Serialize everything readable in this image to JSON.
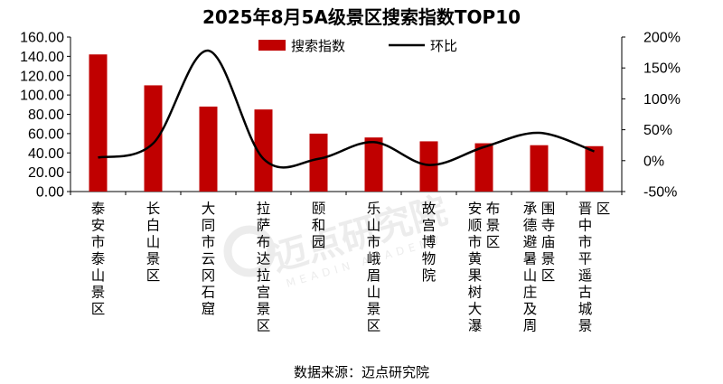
{
  "chart_data": {
    "type": "bar",
    "title": "2025年8月5A级景区搜索指数TOP10",
    "categories": [
      "泰安市泰山景区",
      "长白山景区",
      "大同市云冈石窟",
      "拉萨布达拉宫景区",
      "颐和园",
      "乐山市峨眉山景区",
      "故宫博物院",
      "安顺市黄果树大瀑布景区",
      "承德避暑山庄及周围寺庙景区",
      "晋中市平遥古城景区"
    ],
    "category_lines": [
      [
        "泰安市泰山景区"
      ],
      [
        "长白山景区"
      ],
      [
        "大同市云冈石窟"
      ],
      [
        "拉萨布达拉宫景区"
      ],
      [
        "颐和园"
      ],
      [
        "乐山市峨眉山景区"
      ],
      [
        "故宫博物院"
      ],
      [
        "安顺市黄果树大瀑",
        "布景区"
      ],
      [
        "承德避暑山庄及周",
        "围寺庙景区"
      ],
      [
        "晋中市平遥古城景",
        "区"
      ]
    ],
    "series": [
      {
        "name": "搜索指数",
        "type": "bar",
        "axis": "left",
        "color": "#c00000",
        "values": [
          142,
          110,
          88,
          85,
          60,
          56,
          52,
          50,
          48,
          47
        ]
      },
      {
        "name": "环比",
        "type": "line",
        "axis": "right",
        "color": "#000000",
        "values": [
          5,
          28,
          178,
          3,
          3,
          30,
          -7,
          22,
          45,
          15
        ]
      }
    ],
    "y_left": {
      "min": 0,
      "max": 160,
      "step": 20,
      "ticks": [
        "0.00",
        "20.00",
        "40.00",
        "60.00",
        "80.00",
        "100.00",
        "120.00",
        "140.00",
        "160.00"
      ]
    },
    "y_right": {
      "min": -50,
      "max": 200,
      "step": 50,
      "ticks": [
        "-50%",
        "0%",
        "50%",
        "100%",
        "150%",
        "200%"
      ]
    },
    "legend_position": "top-center",
    "grid": false
  },
  "legend": {
    "bar_label": "搜索指数",
    "line_label": "环比"
  },
  "source": "数据来源：迈点研究院",
  "watermark": {
    "main": "迈点研究院",
    "sub": "MEADIN ACADEMY"
  }
}
